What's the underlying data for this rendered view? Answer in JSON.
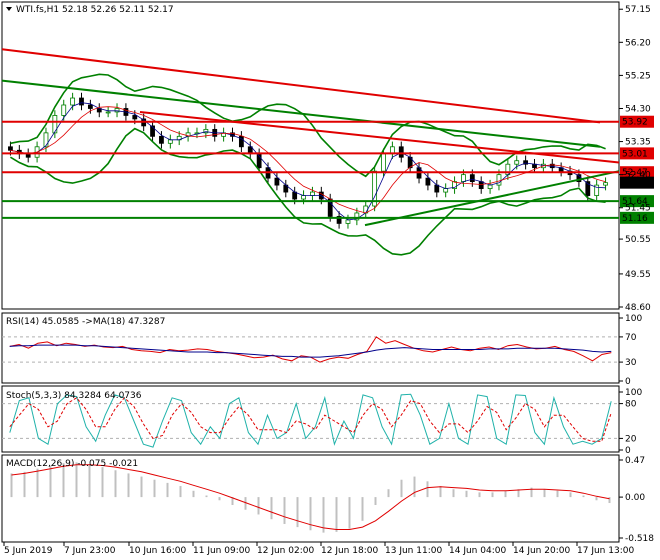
{
  "chart_data": [
    {
      "type": "candlestick",
      "symbol_header": "WTI.fs,H1  52.18 52.26 52.11 52.17",
      "ylim": [
        48.6,
        57.3
      ],
      "y_ticks": [
        "57.15",
        "56.20",
        "55.25",
        "54.30",
        "53.35",
        "52.40",
        "51.45",
        "50.55",
        "49.55",
        "48.60"
      ],
      "x_ticks": [
        "5 Jun 2019",
        "7 Jun 23:00",
        "10 Jun 16:00",
        "11 Jun 09:00",
        "12 Jun 02:00",
        "12 Jun 18:00",
        "13 Jun 11:00",
        "14 Jun 04:00",
        "14 Jun 20:00",
        "17 Jun 13:00"
      ],
      "price_marks": [
        {
          "value": 53.92,
          "label": "53.92",
          "color": "#e00000"
        },
        {
          "value": 53.01,
          "label": "53.01",
          "color": "#e00000"
        },
        {
          "value": 52.47,
          "label": "52.47",
          "color": "#e00000"
        },
        {
          "value": 52.17,
          "label": "52.17",
          "color": "#000000"
        },
        {
          "value": 51.64,
          "label": "51.64",
          "color": "#008000"
        },
        {
          "value": 51.16,
          "label": "51.16",
          "color": "#008000"
        }
      ],
      "closes": [
        53.1,
        53.0,
        52.9,
        53.2,
        53.6,
        54.1,
        54.4,
        54.6,
        54.4,
        54.3,
        54.2,
        54.2,
        54.3,
        54.1,
        54.0,
        53.8,
        53.5,
        53.3,
        53.4,
        53.5,
        53.6,
        53.6,
        53.7,
        53.5,
        53.6,
        53.5,
        53.2,
        53.0,
        52.6,
        52.3,
        52.1,
        51.9,
        51.7,
        51.8,
        51.9,
        51.7,
        51.2,
        51.0,
        51.1,
        51.3,
        51.5,
        52.5,
        53.0,
        53.2,
        52.9,
        52.6,
        52.3,
        52.1,
        51.9,
        52.0,
        52.2,
        52.4,
        52.2,
        52.0,
        52.1,
        52.4,
        52.7,
        52.8,
        52.7,
        52.6,
        52.7,
        52.6,
        52.5,
        52.4,
        52.2,
        51.8,
        52.1,
        52.17
      ],
      "colors": {
        "up": "#008000",
        "down": "#000000",
        "bands": "#008000",
        "resistance": "#e00000",
        "support": "#008000"
      }
    },
    {
      "type": "line",
      "title": "RSI(14) 45.0585  ->MA(18) 47.3287",
      "ylim": [
        0,
        100
      ],
      "y_ticks": [
        "100",
        "70",
        "30",
        "0"
      ],
      "series": [
        {
          "name": "RSI(14)",
          "color": "#e00000",
          "values": [
            55,
            58,
            52,
            60,
            62,
            56,
            60,
            58,
            55,
            57,
            54,
            53,
            55,
            50,
            48,
            47,
            45,
            50,
            48,
            49,
            51,
            50,
            47,
            45,
            43,
            40,
            37,
            38,
            41,
            35,
            32,
            40,
            38,
            30,
            35,
            38,
            36,
            42,
            47,
            70,
            60,
            64,
            58,
            52,
            48,
            46,
            50,
            54,
            50,
            48,
            52,
            54,
            50,
            56,
            58,
            54,
            51,
            52,
            55,
            50,
            47,
            40,
            32,
            42,
            45
          ]
        },
        {
          "name": "MA(18)",
          "color": "#00008b",
          "values": [
            55,
            56,
            56,
            57,
            57,
            57,
            57,
            57,
            56,
            56,
            55,
            54,
            53,
            52,
            51,
            50,
            49,
            48,
            47,
            46,
            46,
            46,
            45,
            45,
            44,
            43,
            42,
            41,
            40,
            39,
            39,
            38,
            38,
            38,
            39,
            40,
            42,
            44,
            46,
            49,
            51,
            52,
            53,
            52,
            51,
            50,
            50,
            50,
            50,
            50,
            50,
            51,
            51,
            51,
            52,
            52,
            52,
            52,
            52,
            51,
            50,
            49,
            47,
            46,
            47
          ]
        }
      ]
    },
    {
      "type": "line",
      "title": "Stoch(5,3,3) 84.3284 64.0736",
      "ylim": [
        0,
        100
      ],
      "y_ticks": [
        "100",
        "80",
        "20",
        "0"
      ],
      "series": [
        {
          "name": "%K",
          "color": "#20b2aa",
          "values": [
            30,
            85,
            90,
            20,
            10,
            80,
            95,
            92,
            40,
            15,
            60,
            95,
            90,
            50,
            10,
            5,
            50,
            90,
            85,
            30,
            10,
            40,
            20,
            80,
            90,
            30,
            10,
            60,
            20,
            30,
            80,
            20,
            40,
            90,
            10,
            50,
            20,
            95,
            90,
            40,
            10,
            95,
            96,
            60,
            10,
            20,
            80,
            20,
            10,
            95,
            92,
            20,
            10,
            95,
            94,
            30,
            10,
            90,
            40,
            10,
            15,
            10,
            20,
            84
          ]
        },
        {
          "name": "%D",
          "color": "#e00000",
          "values": [
            40,
            60,
            80,
            70,
            40,
            50,
            80,
            90,
            70,
            40,
            40,
            70,
            90,
            75,
            45,
            20,
            25,
            60,
            80,
            65,
            40,
            30,
            30,
            55,
            75,
            60,
            35,
            35,
            35,
            30,
            50,
            45,
            35,
            60,
            50,
            40,
            30,
            60,
            80,
            70,
            40,
            60,
            85,
            80,
            50,
            30,
            45,
            45,
            30,
            50,
            75,
            65,
            35,
            55,
            80,
            70,
            40,
            60,
            60,
            40,
            20,
            15,
            15,
            64
          ]
        }
      ]
    },
    {
      "type": "bar",
      "title": "MACD(12,26,9) -0.075 -0.021",
      "ylim": [
        -0.518,
        0.47
      ],
      "y_ticks": [
        "0.47",
        "0.00",
        "-0.518"
      ],
      "series": [
        {
          "name": "MACD",
          "color": "#c0c0c0",
          "values": [
            0.3,
            0.32,
            0.36,
            0.4,
            0.43,
            0.44,
            0.42,
            0.38,
            0.34,
            0.3,
            0.26,
            0.22,
            0.18,
            0.14,
            0.08,
            0.02,
            -0.04,
            -0.1,
            -0.16,
            -0.22,
            -0.28,
            -0.34,
            -0.38,
            -0.42,
            -0.45,
            -0.44,
            -0.4,
            -0.3,
            -0.1,
            0.1,
            0.22,
            0.26,
            0.2,
            0.14,
            0.1,
            0.08,
            0.06,
            0.06,
            0.08,
            0.1,
            0.12,
            0.1,
            0.08,
            0.06,
            0.02,
            -0.04,
            -0.075
          ]
        },
        {
          "name": "Signal",
          "color": "#e00000",
          "values": [
            0.28,
            0.3,
            0.33,
            0.36,
            0.39,
            0.41,
            0.41,
            0.4,
            0.38,
            0.35,
            0.32,
            0.28,
            0.24,
            0.2,
            0.15,
            0.1,
            0.05,
            -0.01,
            -0.07,
            -0.13,
            -0.19,
            -0.25,
            -0.3,
            -0.35,
            -0.39,
            -0.41,
            -0.41,
            -0.38,
            -0.3,
            -0.18,
            -0.05,
            0.06,
            0.12,
            0.13,
            0.12,
            0.11,
            0.09,
            0.08,
            0.08,
            0.09,
            0.1,
            0.1,
            0.09,
            0.08,
            0.05,
            0.01,
            -0.021
          ]
        }
      ]
    }
  ]
}
